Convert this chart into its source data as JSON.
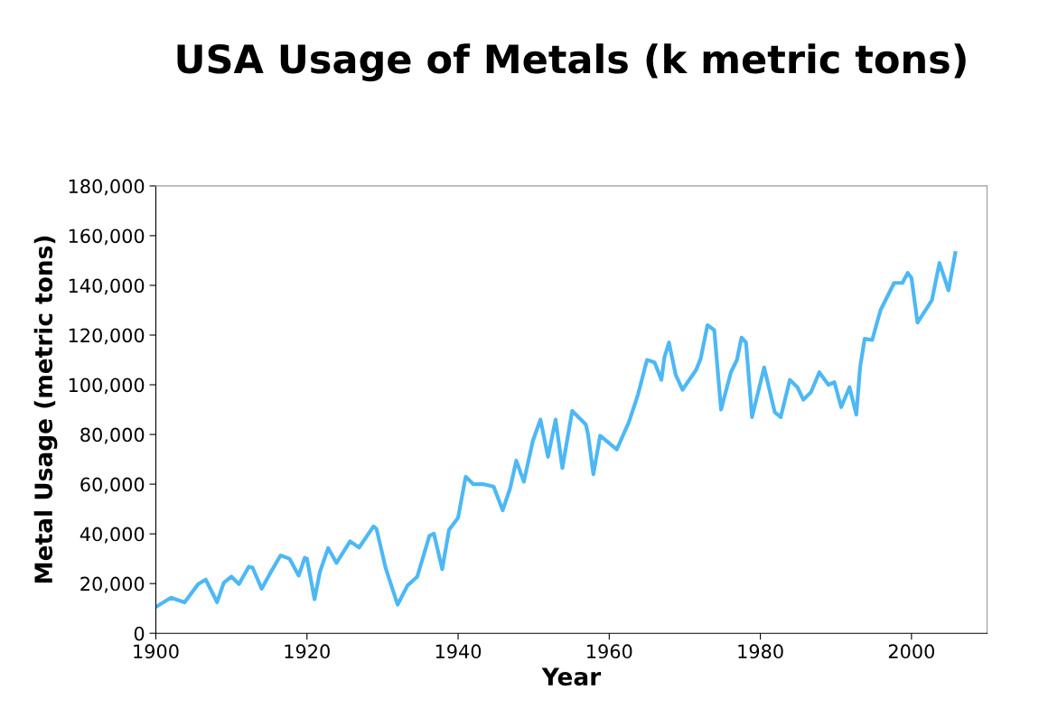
{
  "chart_data": {
    "type": "line",
    "title": "USA Usage of Metals (k metric tons)",
    "xlabel": "Year",
    "ylabel": "Metal Usage (metric tons)",
    "xlim": [
      1900,
      2010
    ],
    "xticks": [
      1900,
      1920,
      1940,
      1960,
      1980,
      2000
    ],
    "ylim": [
      0,
      180000
    ],
    "yticks": [
      {
        "value": 0,
        "label": "0"
      },
      {
        "value": 20000,
        "label": "20,000"
      },
      {
        "value": 40000,
        "label": "40,000"
      },
      {
        "value": 60000,
        "label": "60,000"
      },
      {
        "value": 80000,
        "label": "80,000"
      },
      {
        "value": 100000,
        "label": "100,000"
      },
      {
        "value": 120000,
        "label": "120,000"
      },
      {
        "value": 140000,
        "label": "140,000"
      },
      {
        "value": 160000,
        "label": "160,000"
      },
      {
        "value": 180000,
        "label": "180,000"
      }
    ],
    "grid": false,
    "marker": "none",
    "line_style": "solid",
    "x": [
      1900,
      1902,
      1903.8,
      1905.6,
      1906.6,
      1908.1,
      1909,
      1910,
      1911,
      1912.3,
      1912.8,
      1914,
      1915.1,
      1916.5,
      1917.7,
      1918.9,
      1919.7,
      1920,
      1921,
      1921.7,
      1922.8,
      1923.9,
      1925.7,
      1926.9,
      1928.8,
      1929.2,
      1930.4,
      1932,
      1933.3,
      1934.6,
      1936.2,
      1936.8,
      1937.9,
      1938.8,
      1940,
      1941,
      1942,
      1943.3,
      1944.7,
      1945.9,
      1946.9,
      1947.7,
      1948.7,
      1949.9,
      1950.9,
      1951.9,
      1952.9,
      1953.8,
      1955.1,
      1956.9,
      1957.2,
      1957.9,
      1958.8,
      1961,
      1962.6,
      1963.8,
      1965,
      1966,
      1966.9,
      1967.3,
      1967.9,
      1968.8,
      1969.7,
      1971.5,
      1972.1,
      1973,
      1973.9,
      1974.8,
      1976.1,
      1976.9,
      1977.5,
      1978.1,
      1978.9,
      1980.5,
      1981.9,
      1982.7,
      1983.9,
      1984.9,
      1985.7,
      1986.7,
      1987.8,
      1989,
      1989.8,
      1990.7,
      1991.8,
      1992.7,
      1993.2,
      1993.8,
      1994.8,
      1995.9,
      1997.7,
      1998.8,
      1999.5,
      2000,
      2000.8,
      2002.7,
      2003.7,
      2004.9,
      2005.8
    ],
    "series": [
      {
        "color": "#4db8f5",
        "values": [
          10600,
          14300,
          12400,
          19800,
          21600,
          12500,
          20400,
          22800,
          19800,
          26800,
          26400,
          17900,
          24000,
          31300,
          30000,
          23200,
          30400,
          30000,
          13700,
          24600,
          34300,
          28300,
          37000,
          34500,
          43000,
          42000,
          26400,
          11500,
          19200,
          22800,
          39200,
          40100,
          25800,
          41600,
          46500,
          63000,
          60000,
          60000,
          59000,
          49500,
          58500,
          69500,
          61000,
          77500,
          86000,
          71000,
          86000,
          66500,
          89500,
          84000,
          80000,
          64000,
          79500,
          74000,
          85000,
          96000,
          110000,
          109000,
          102000,
          111000,
          117000,
          104000,
          98000,
          106000,
          110500,
          124000,
          122000,
          90000,
          105000,
          110000,
          119000,
          117000,
          87000,
          107000,
          89000,
          87000,
          102000,
          99000,
          94000,
          97000,
          105000,
          100000,
          101000,
          91000,
          99000,
          88000,
          107000,
          118500,
          118000,
          130000,
          141000,
          141000,
          145000,
          143000,
          125000,
          134000,
          149000,
          138000,
          153000
        ]
      }
    ]
  }
}
